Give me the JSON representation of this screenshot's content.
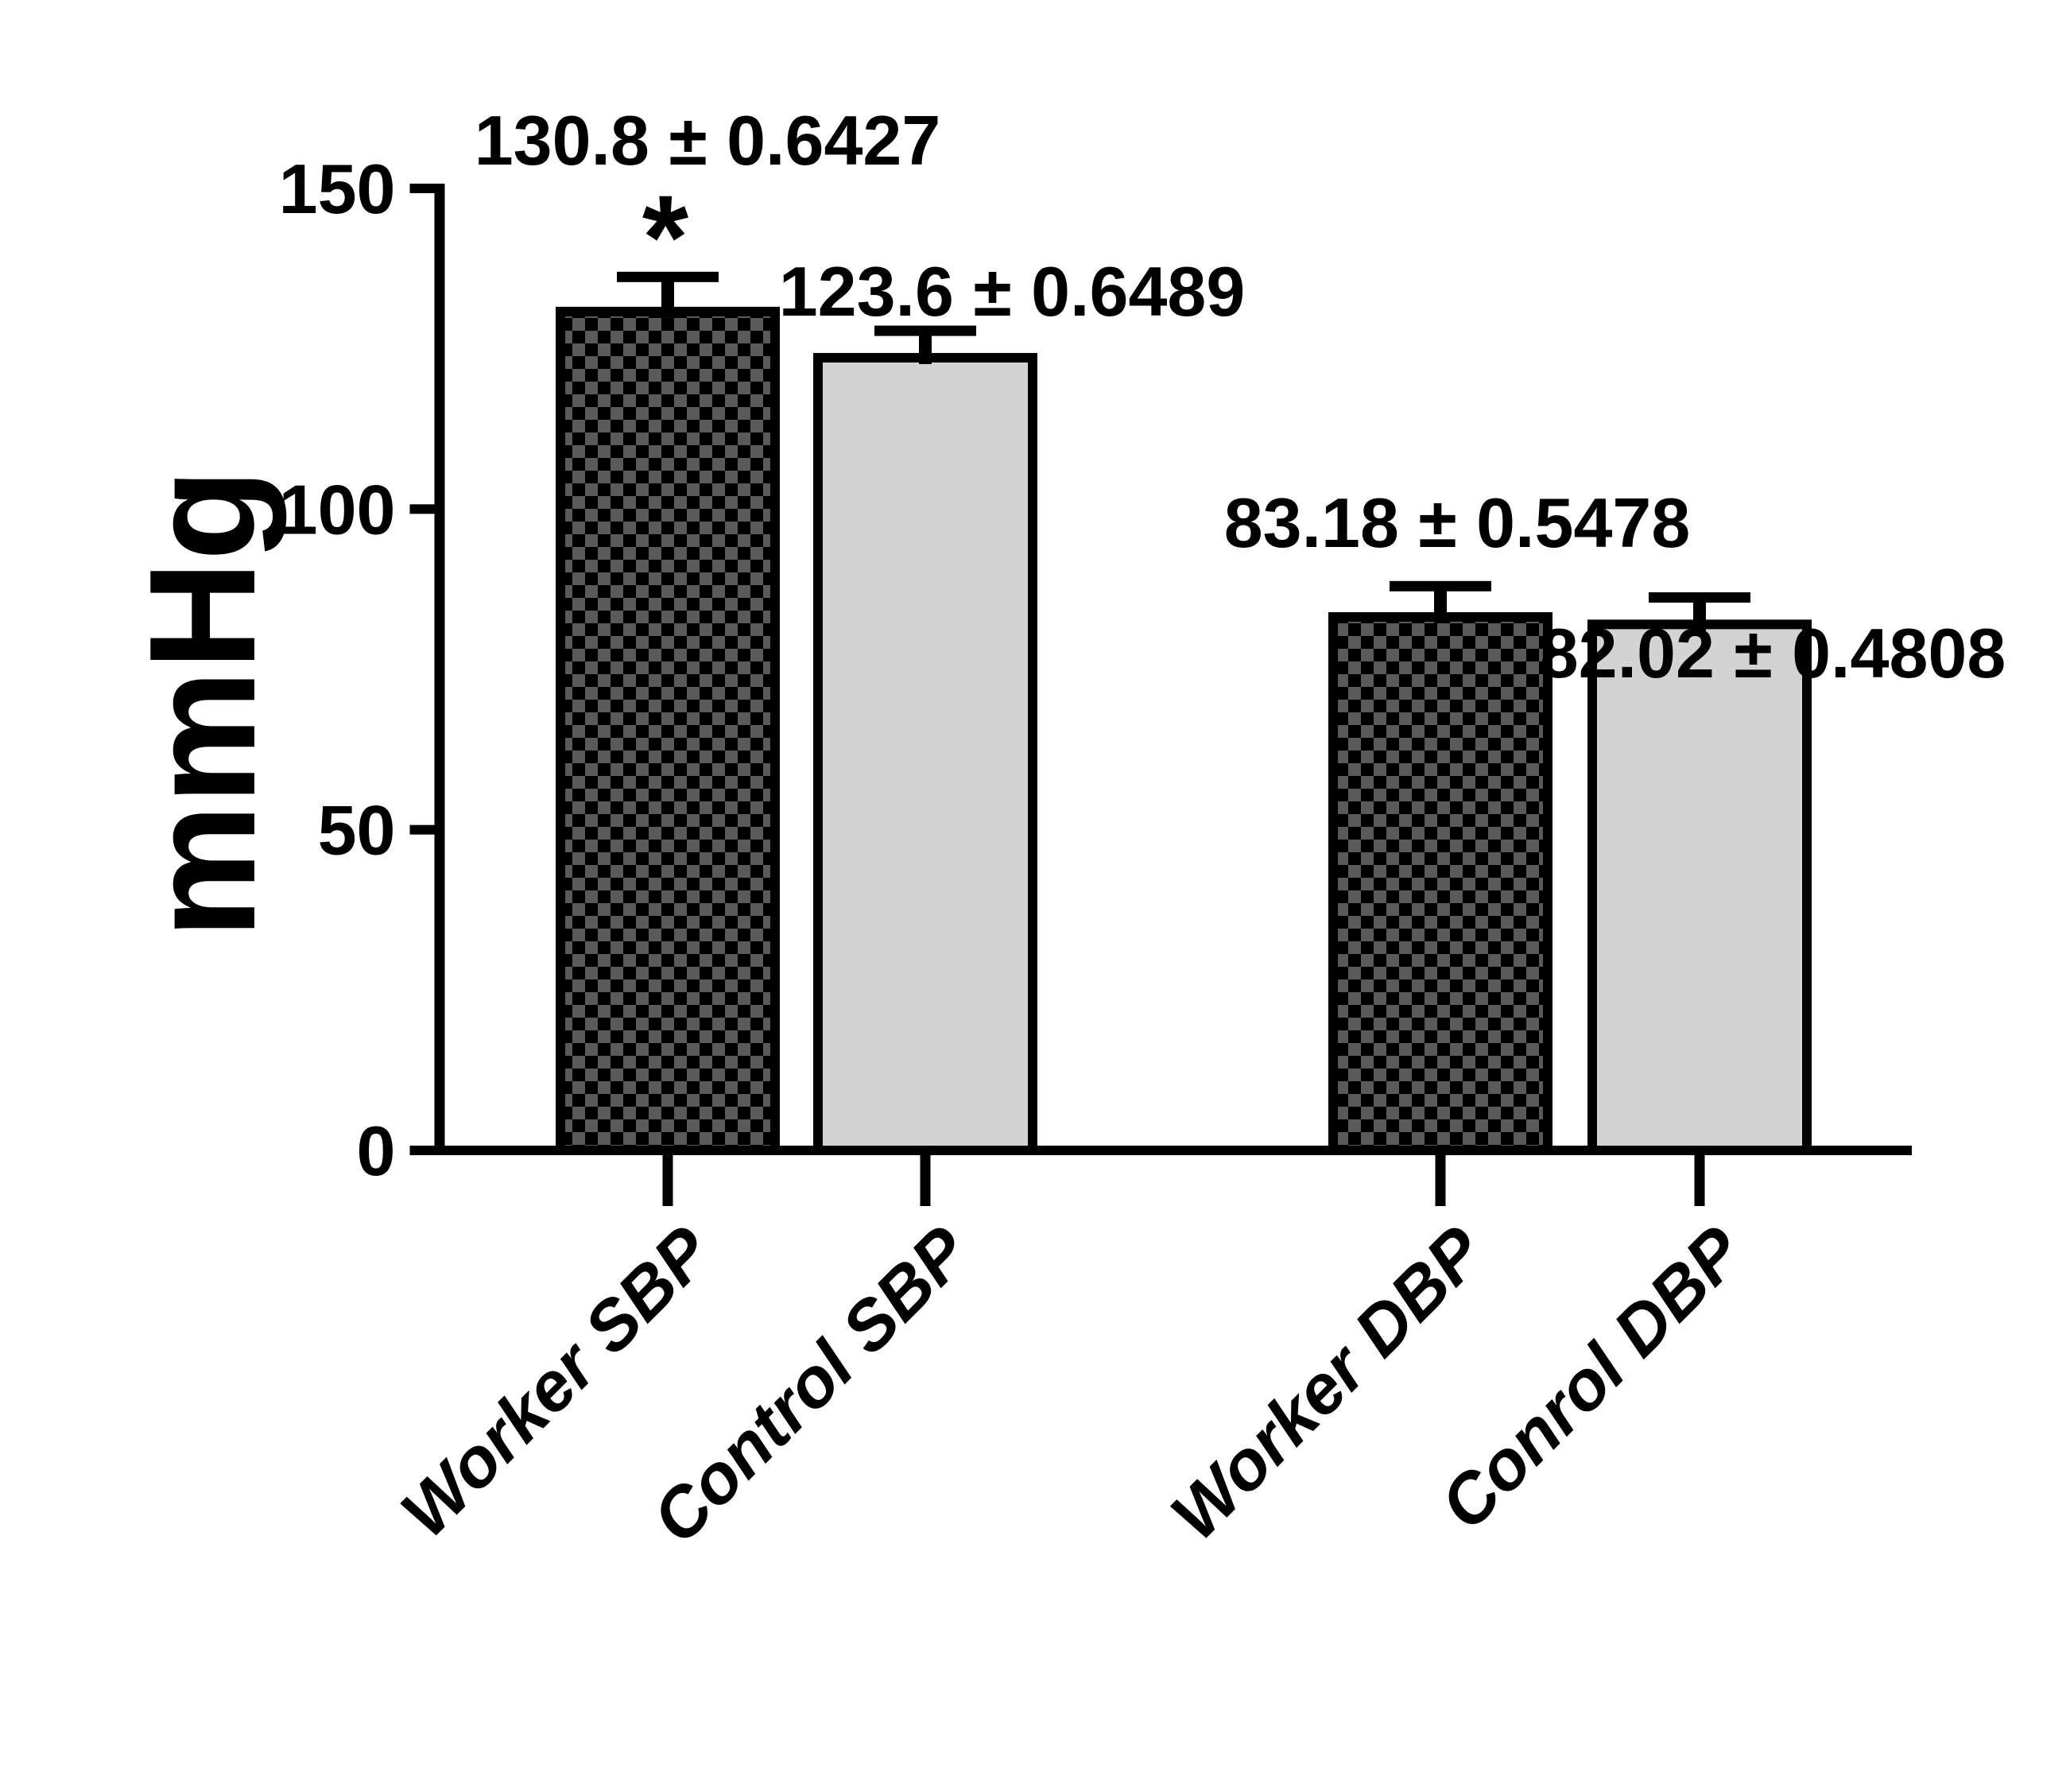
{
  "chart_data": {
    "type": "bar",
    "title": "",
    "ylabel": "mmHg",
    "xlabel": "",
    "ylim": [
      0,
      150
    ],
    "yticks": [
      "0",
      "50",
      "100",
      "150"
    ],
    "grid": false,
    "legend": null,
    "categories": [
      "Worker SBP",
      "Control SBP",
      "Worker DBP",
      "Conrol DBP"
    ],
    "values": [
      130.8,
      123.6,
      83.18,
      82.02
    ],
    "value_labels": [
      "130.8 ± 0.6427",
      "123.6 ± 0.6489",
      "83.18 ± 0.5478",
      "82.02 ± 0.4808"
    ],
    "errors_text": [
      0.6427,
      0.6489,
      0.5478,
      0.4808
    ],
    "errors_drawn_units": [
      5.4,
      4.2,
      4.8,
      4.2
    ],
    "significance": {
      "category_index": 0,
      "symbol": "*"
    },
    "bar_styles": [
      "checkerboard",
      "solid",
      "checkerboard",
      "solid"
    ],
    "colors": {
      "axis": "#000000",
      "text": "#000000",
      "checker_base": "#000000",
      "checker_square": "#595959",
      "solid_fill": "#d3d3d3",
      "bar_stroke": "#000000",
      "background": "#ffffff"
    }
  }
}
